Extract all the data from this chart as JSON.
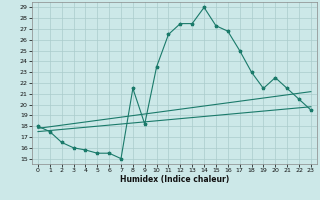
{
  "background_color": "#cce8e8",
  "grid_color": "#aacccc",
  "line_color": "#1a7a6a",
  "xlabel": "Humidex (Indice chaleur)",
  "xlim": [
    -0.5,
    23.5
  ],
  "ylim": [
    14.5,
    29.5
  ],
  "yticks": [
    15,
    16,
    17,
    18,
    19,
    20,
    21,
    22,
    23,
    24,
    25,
    26,
    27,
    28,
    29
  ],
  "xticks": [
    0,
    1,
    2,
    3,
    4,
    5,
    6,
    7,
    8,
    9,
    10,
    11,
    12,
    13,
    14,
    15,
    16,
    17,
    18,
    19,
    20,
    21,
    22,
    23
  ],
  "main_x": [
    0,
    1,
    2,
    3,
    4,
    5,
    6,
    7,
    8,
    9,
    10,
    11,
    12,
    13,
    14,
    15,
    16,
    17,
    18,
    19,
    20,
    21,
    22,
    23
  ],
  "main_y": [
    18.0,
    17.5,
    16.5,
    16.0,
    15.8,
    15.5,
    15.5,
    15.0,
    21.5,
    18.2,
    23.5,
    26.5,
    27.5,
    27.5,
    29.0,
    27.3,
    26.8,
    25.0,
    23.0,
    21.5,
    22.5,
    21.5,
    20.5,
    19.5
  ],
  "line2_x": [
    0,
    23
  ],
  "line2_y": [
    17.8,
    21.2
  ],
  "line3_x": [
    0,
    23
  ],
  "line3_y": [
    17.5,
    19.8
  ]
}
